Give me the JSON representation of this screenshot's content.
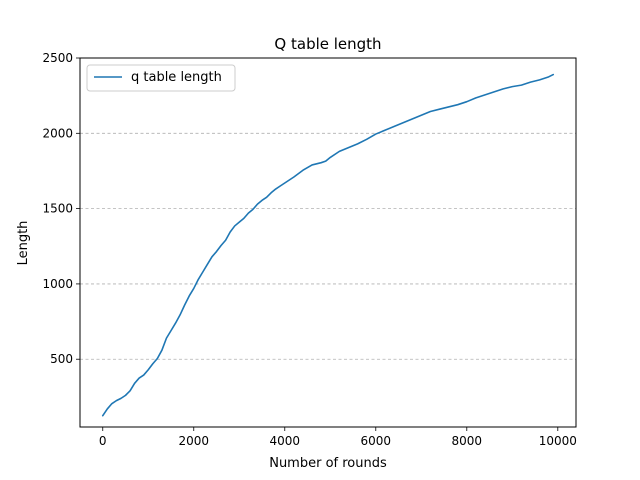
{
  "chart_data": {
    "type": "line",
    "title": "Q table length",
    "xlabel": "Number of rounds",
    "ylabel": "Length",
    "xlim": [
      -500,
      10400
    ],
    "ylim": [
      50,
      2500
    ],
    "xticks": [
      0,
      2000,
      4000,
      6000,
      8000,
      10000
    ],
    "yticks": [
      500,
      1000,
      1500,
      2000,
      2500
    ],
    "xtick_labels": [
      "0",
      "2000",
      "4000",
      "6000",
      "8000",
      "10000"
    ],
    "ytick_labels": [
      "500",
      "1000",
      "1500",
      "2000",
      "2500"
    ],
    "grid": "y-dashed",
    "legend_position": "top-left",
    "colors": {
      "series": "#1f77b4",
      "grid": "#b0b0b0"
    },
    "series": [
      {
        "name": "q table length",
        "x": [
          0,
          100,
          200,
          300,
          400,
          500,
          600,
          700,
          800,
          900,
          1000,
          1100,
          1200,
          1300,
          1400,
          1500,
          1600,
          1700,
          1800,
          1900,
          2000,
          2100,
          2200,
          2300,
          2400,
          2500,
          2600,
          2700,
          2800,
          2900,
          3000,
          3100,
          3200,
          3300,
          3400,
          3500,
          3600,
          3700,
          3800,
          3900,
          4000,
          4200,
          4400,
          4600,
          4800,
          4900,
          5000,
          5200,
          5400,
          5600,
          5800,
          6000,
          6200,
          6400,
          6600,
          6800,
          7000,
          7200,
          7400,
          7600,
          7800,
          8000,
          8200,
          8400,
          8600,
          8800,
          9000,
          9200,
          9400,
          9600,
          9800,
          9900
        ],
        "y": [
          125,
          170,
          205,
          225,
          240,
          260,
          290,
          340,
          375,
          395,
          430,
          470,
          505,
          560,
          640,
          690,
          740,
          795,
          860,
          920,
          970,
          1030,
          1080,
          1130,
          1180,
          1215,
          1255,
          1290,
          1345,
          1385,
          1410,
          1435,
          1470,
          1495,
          1530,
          1555,
          1575,
          1605,
          1630,
          1650,
          1670,
          1710,
          1755,
          1790,
          1805,
          1815,
          1840,
          1880,
          1905,
          1930,
          1960,
          1995,
          2020,
          2045,
          2070,
          2095,
          2120,
          2145,
          2160,
          2175,
          2190,
          2210,
          2235,
          2255,
          2275,
          2295,
          2310,
          2320,
          2340,
          2355,
          2375,
          2390
        ]
      }
    ]
  }
}
